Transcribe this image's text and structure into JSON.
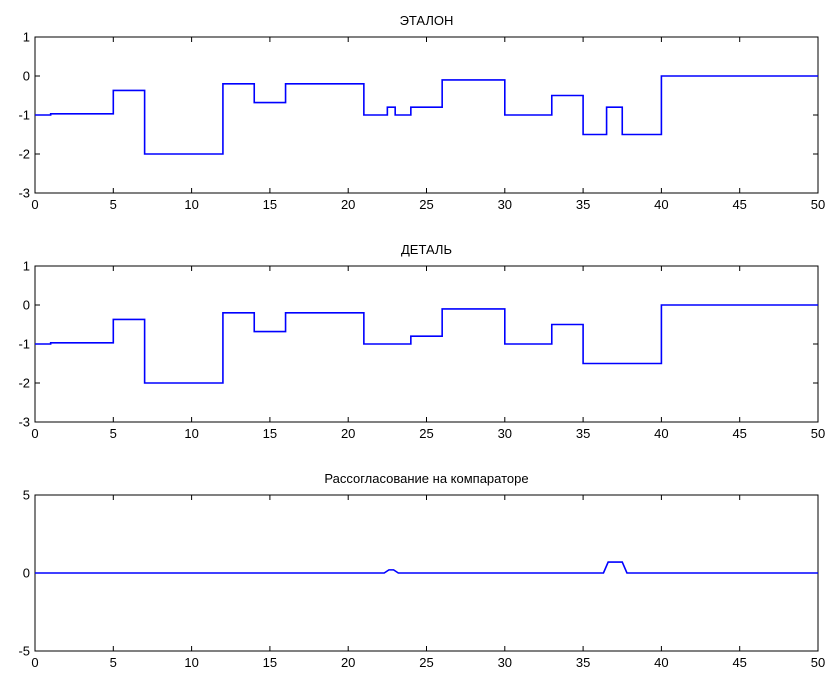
{
  "chart_data": [
    {
      "type": "line",
      "title": "ЭТАЛОН",
      "xlim": [
        0,
        50
      ],
      "ylim": [
        -3,
        1
      ],
      "xticks": [
        0,
        5,
        10,
        15,
        20,
        25,
        30,
        35,
        40,
        45,
        50
      ],
      "yticks": [
        1,
        0,
        -1,
        -2,
        -3
      ],
      "grid": false,
      "series": [
        {
          "color": "#0000ff",
          "x": [
            0,
            1,
            1,
            5,
            5,
            7,
            7,
            12,
            12,
            14,
            14,
            16,
            16,
            21,
            21,
            22.5,
            22.5,
            23,
            23,
            24,
            24,
            26,
            26,
            30,
            30,
            33,
            33,
            35,
            35,
            36.5,
            36.5,
            37.5,
            37.5,
            40,
            40,
            50
          ],
          "y": [
            -1,
            -1,
            -0.97,
            -0.97,
            -0.37,
            -0.37,
            -2,
            -2,
            -0.2,
            -0.2,
            -0.68,
            -0.68,
            -0.2,
            -0.2,
            -1,
            -1,
            -0.8,
            -0.8,
            -1,
            -1,
            -0.8,
            -0.8,
            -0.1,
            -0.1,
            -1,
            -1,
            -0.5,
            -0.5,
            -1.5,
            -1.5,
            -0.8,
            -0.8,
            -1.5,
            -1.5,
            0,
            0
          ]
        }
      ]
    },
    {
      "type": "line",
      "title": "ДЕТАЛЬ",
      "xlim": [
        0,
        50
      ],
      "ylim": [
        -3,
        1
      ],
      "xticks": [
        0,
        5,
        10,
        15,
        20,
        25,
        30,
        35,
        40,
        45,
        50
      ],
      "yticks": [
        1,
        0,
        -1,
        -2,
        -3
      ],
      "grid": false,
      "series": [
        {
          "color": "#0000ff",
          "x": [
            0,
            1,
            1,
            5,
            5,
            7,
            7,
            12,
            12,
            14,
            14,
            16,
            16,
            21,
            21,
            24,
            24,
            26,
            26,
            30,
            30,
            33,
            33,
            35,
            35,
            40,
            40,
            50
          ],
          "y": [
            -1,
            -1,
            -0.97,
            -0.97,
            -0.37,
            -0.37,
            -2,
            -2,
            -0.2,
            -0.2,
            -0.68,
            -0.68,
            -0.2,
            -0.2,
            -1,
            -1,
            -0.8,
            -0.8,
            -0.1,
            -0.1,
            -1,
            -1,
            -0.5,
            -0.5,
            -1.5,
            -1.5,
            0,
            0
          ]
        }
      ]
    },
    {
      "type": "line",
      "title": "Рассогласование на компараторе",
      "xlim": [
        0,
        50
      ],
      "ylim": [
        -5,
        5
      ],
      "xticks": [
        0,
        5,
        10,
        15,
        20,
        25,
        30,
        35,
        40,
        45,
        50
      ],
      "yticks": [
        5,
        0,
        -5
      ],
      "grid": false,
      "series": [
        {
          "color": "#0000ff",
          "x": [
            0,
            22.3,
            22.6,
            22.9,
            23.2,
            36.3,
            36.6,
            37.5,
            37.8,
            50
          ],
          "y": [
            0,
            0,
            0.2,
            0.2,
            0,
            0,
            0.7,
            0.7,
            0,
            0
          ]
        }
      ]
    }
  ]
}
